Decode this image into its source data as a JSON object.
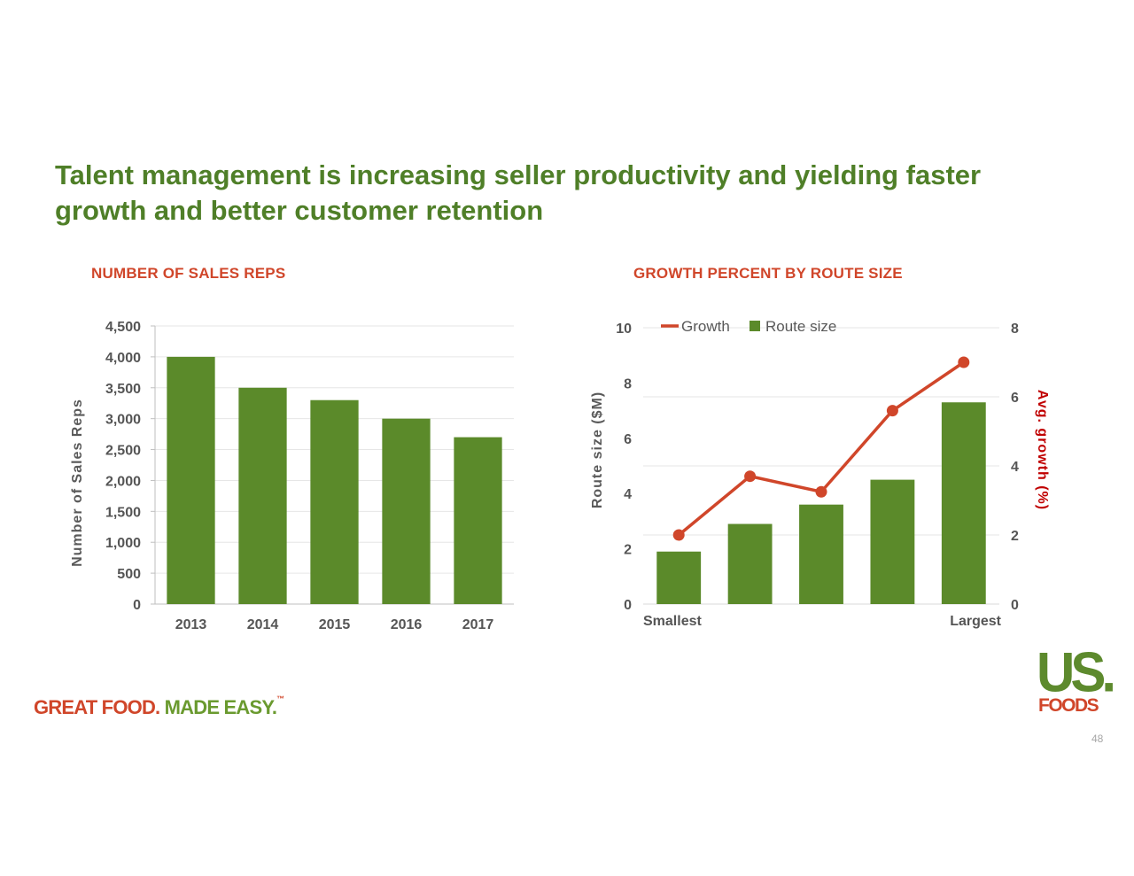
{
  "header": {
    "title": "Talent management is increasing seller productivity and yielding faster growth and better customer retention"
  },
  "footer": {
    "tagline_part1": "GREAT FOOD.",
    "tagline_part2": "MADE EASY.",
    "tagline_tm": "™",
    "logo_us": "US.",
    "logo_foods": "FOODS",
    "page_number": "48"
  },
  "colors": {
    "bar": "#5b8a2a",
    "line": "#d0462a",
    "title": "#4f7f28",
    "chart_title": "#d0462a",
    "right_axis_title": "#c00000"
  },
  "chart_data": [
    {
      "type": "bar",
      "title": "NUMBER OF SALES REPS",
      "categories": [
        "2013",
        "2014",
        "2015",
        "2016",
        "2017"
      ],
      "values": [
        4000,
        3500,
        3300,
        3000,
        2700
      ],
      "ylabel": "Number of Sales Reps",
      "ylim": [
        0,
        4500
      ],
      "yticks": [
        "0",
        "500",
        "1,000",
        "1,500",
        "2,000",
        "2,500",
        "3,000",
        "3,500",
        "4,000",
        "4,500"
      ],
      "grid": true
    },
    {
      "type": "bar",
      "title": "GROWTH PERCENT BY ROUTE SIZE",
      "categories": [
        "Smallest",
        "",
        "",
        "",
        "Largest"
      ],
      "series": [
        {
          "name": "Route size",
          "type": "bar",
          "axis": "left",
          "values": [
            1.9,
            2.9,
            3.6,
            4.5,
            7.3
          ]
        },
        {
          "name": "Growth",
          "type": "line",
          "axis": "right",
          "values": [
            2.0,
            3.7,
            3.25,
            5.6,
            7.0
          ]
        }
      ],
      "ylabel": "Route size ($M)",
      "ylim": [
        0,
        10
      ],
      "yticks": [
        "0",
        "2",
        "4",
        "6",
        "8",
        "10"
      ],
      "y2label": "Avg. growth (%)",
      "y2lim": [
        0,
        8
      ],
      "y2ticks": [
        "0",
        "2",
        "4",
        "6",
        "8"
      ],
      "legend": "top",
      "grid": true
    }
  ]
}
